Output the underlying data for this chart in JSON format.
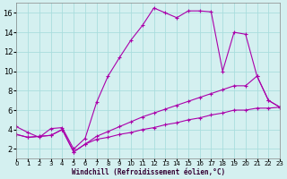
{
  "xlabel": "Windchill (Refroidissement éolien,°C)",
  "background_color": "#d4f0f0",
  "grid_color": "#aadddd",
  "line_color": "#aa00aa",
  "xlim": [
    0,
    23
  ],
  "ylim": [
    1,
    17
  ],
  "xticks": [
    0,
    1,
    2,
    3,
    4,
    5,
    6,
    7,
    8,
    9,
    10,
    11,
    12,
    13,
    14,
    15,
    16,
    17,
    18,
    19,
    20,
    21,
    22,
    23
  ],
  "yticks": [
    2,
    4,
    6,
    8,
    10,
    12,
    14,
    16
  ],
  "line1_x": [
    0,
    1,
    2,
    3,
    4,
    5,
    6,
    7,
    8,
    9,
    10,
    11,
    12,
    13,
    14,
    15,
    16,
    17,
    18,
    19,
    20,
    21,
    22,
    23
  ],
  "line1_y": [
    4.3,
    3.7,
    3.2,
    4.1,
    4.2,
    2.0,
    3.1,
    6.8,
    9.5,
    11.4,
    13.2,
    14.7,
    16.5,
    16.0,
    15.5,
    16.2,
    16.2,
    16.1,
    10.0,
    14.0,
    13.8,
    9.5,
    7.0,
    6.3
  ],
  "line2_x": [
    0,
    1,
    2,
    3,
    4,
    5,
    6,
    7,
    8,
    9,
    10,
    11,
    12,
    13,
    14,
    15,
    16,
    17,
    18,
    19,
    20,
    21,
    22,
    23
  ],
  "line2_y": [
    3.5,
    3.2,
    3.3,
    3.4,
    4.0,
    1.7,
    2.5,
    3.3,
    3.8,
    4.3,
    4.8,
    5.3,
    5.7,
    6.1,
    6.5,
    6.9,
    7.3,
    7.7,
    8.1,
    8.5,
    8.5,
    9.5,
    7.0,
    6.3
  ],
  "line3_x": [
    0,
    1,
    2,
    3,
    4,
    5,
    6,
    7,
    8,
    9,
    10,
    11,
    12,
    13,
    14,
    15,
    16,
    17,
    18,
    19,
    20,
    21,
    22,
    23
  ],
  "line3_y": [
    3.5,
    3.2,
    3.3,
    3.4,
    4.0,
    1.7,
    2.5,
    3.0,
    3.2,
    3.5,
    3.7,
    4.0,
    4.2,
    4.5,
    4.7,
    5.0,
    5.2,
    5.5,
    5.7,
    6.0,
    6.0,
    6.2,
    6.2,
    6.3
  ]
}
